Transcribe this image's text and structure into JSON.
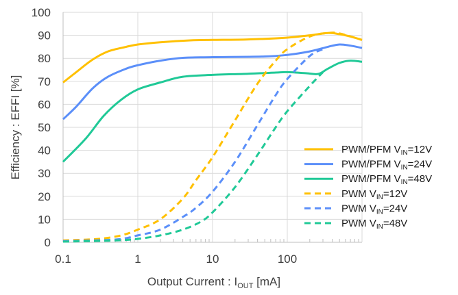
{
  "chart_data": {
    "type": "line",
    "xlabel": {
      "text": "Output Current : I",
      "sub": "OUT",
      "suffix": " [mA]"
    },
    "ylabel": "Efficiency : EFFI [%]",
    "x_scale": "log",
    "xlim": [
      0.1,
      1000
    ],
    "ylim": [
      0,
      100
    ],
    "x_ticks": [
      0.1,
      1,
      10,
      100
    ],
    "x_tick_labels": [
      "0.1",
      "1",
      "10",
      "100"
    ],
    "y_ticks": [
      0,
      10,
      20,
      30,
      40,
      50,
      60,
      70,
      80,
      90,
      100
    ],
    "y_tick_labels": [
      "0",
      "10",
      "20",
      "30",
      "40",
      "50",
      "60",
      "70",
      "80",
      "90",
      "100"
    ],
    "grid": true,
    "legend_position": "bottom-right",
    "series": [
      {
        "name": "PWM/PFM V_IN=12V",
        "legend": {
          "pre": "PWM/PFM V",
          "sub": "IN",
          "post": "=12V"
        },
        "color": "#ffc000",
        "dash": "solid",
        "points": [
          [
            0.1,
            69.5
          ],
          [
            0.15,
            74
          ],
          [
            0.25,
            79.5
          ],
          [
            0.4,
            83
          ],
          [
            0.7,
            85
          ],
          [
            1,
            86
          ],
          [
            2,
            87
          ],
          [
            5,
            87.8
          ],
          [
            10,
            88
          ],
          [
            30,
            88.2
          ],
          [
            100,
            89
          ],
          [
            200,
            90
          ],
          [
            350,
            91
          ],
          [
            500,
            90.5
          ],
          [
            700,
            89.5
          ],
          [
            1000,
            88
          ]
        ]
      },
      {
        "name": "PWM/PFM V_IN=24V",
        "legend": {
          "pre": "PWM/PFM V",
          "sub": "IN",
          "post": "=24V"
        },
        "color": "#5b8ff9",
        "dash": "solid",
        "points": [
          [
            0.1,
            53.5
          ],
          [
            0.15,
            59
          ],
          [
            0.25,
            67
          ],
          [
            0.4,
            72
          ],
          [
            0.7,
            75.5
          ],
          [
            1,
            77
          ],
          [
            2,
            79
          ],
          [
            4,
            80.2
          ],
          [
            10,
            80.5
          ],
          [
            50,
            80.8
          ],
          [
            100,
            81.5
          ],
          [
            200,
            83
          ],
          [
            350,
            85
          ],
          [
            500,
            86
          ],
          [
            700,
            85.5
          ],
          [
            1000,
            84.5
          ]
        ]
      },
      {
        "name": "PWM/PFM V_IN=48V",
        "legend": {
          "pre": "PWM/PFM V",
          "sub": "IN",
          "post": "=48V"
        },
        "color": "#20c997",
        "dash": "solid",
        "points": [
          [
            0.1,
            35
          ],
          [
            0.2,
            45
          ],
          [
            0.35,
            55
          ],
          [
            0.6,
            62
          ],
          [
            1,
            66.5
          ],
          [
            2,
            69.5
          ],
          [
            4,
            72
          ],
          [
            10,
            72.8
          ],
          [
            30,
            73.3
          ],
          [
            70,
            73.8
          ],
          [
            100,
            74
          ],
          [
            180,
            73.5
          ],
          [
            260,
            73.2
          ],
          [
            350,
            75.5
          ],
          [
            500,
            78
          ],
          [
            700,
            79
          ],
          [
            1000,
            78.5
          ]
        ]
      },
      {
        "name": "PWM V_IN=12V",
        "legend": {
          "pre": "PWM V",
          "sub": "IN",
          "post": "=12V"
        },
        "color": "#ffc000",
        "dash": "dashed",
        "points": [
          [
            0.1,
            0.8
          ],
          [
            0.3,
            1.5
          ],
          [
            0.6,
            3
          ],
          [
            1,
            5.5
          ],
          [
            2,
            10
          ],
          [
            4,
            19
          ],
          [
            6,
            27
          ],
          [
            10,
            37
          ],
          [
            20,
            53
          ],
          [
            40,
            69
          ],
          [
            70,
            79
          ],
          [
            100,
            84
          ],
          [
            200,
            89.5
          ],
          [
            350,
            91
          ],
          [
            500,
            90.8
          ],
          [
            1000,
            88
          ]
        ]
      },
      {
        "name": "PWM V_IN=24V",
        "legend": {
          "pre": "PWM V",
          "sub": "IN",
          "post": "=24V"
        },
        "color": "#5b8ff9",
        "dash": "dashed",
        "points": [
          [
            0.1,
            0.5
          ],
          [
            0.5,
            1.2
          ],
          [
            1,
            3
          ],
          [
            2,
            5.5
          ],
          [
            4,
            11
          ],
          [
            6,
            15
          ],
          [
            10,
            22
          ],
          [
            20,
            35
          ],
          [
            40,
            51
          ],
          [
            70,
            64
          ],
          [
            100,
            71
          ],
          [
            200,
            81
          ],
          [
            300,
            84
          ]
        ]
      },
      {
        "name": "PWM V_IN=48V",
        "legend": {
          "pre": "PWM V",
          "sub": "IN",
          "post": "=48V"
        },
        "color": "#20c997",
        "dash": "dashed",
        "points": [
          [
            0.1,
            0.3
          ],
          [
            0.5,
            0.8
          ],
          [
            1,
            1.5
          ],
          [
            2,
            3
          ],
          [
            4,
            5.5
          ],
          [
            7,
            9
          ],
          [
            10,
            13
          ],
          [
            20,
            24
          ],
          [
            40,
            38
          ],
          [
            70,
            50
          ],
          [
            100,
            57
          ],
          [
            200,
            68
          ],
          [
            300,
            74
          ]
        ]
      }
    ]
  }
}
